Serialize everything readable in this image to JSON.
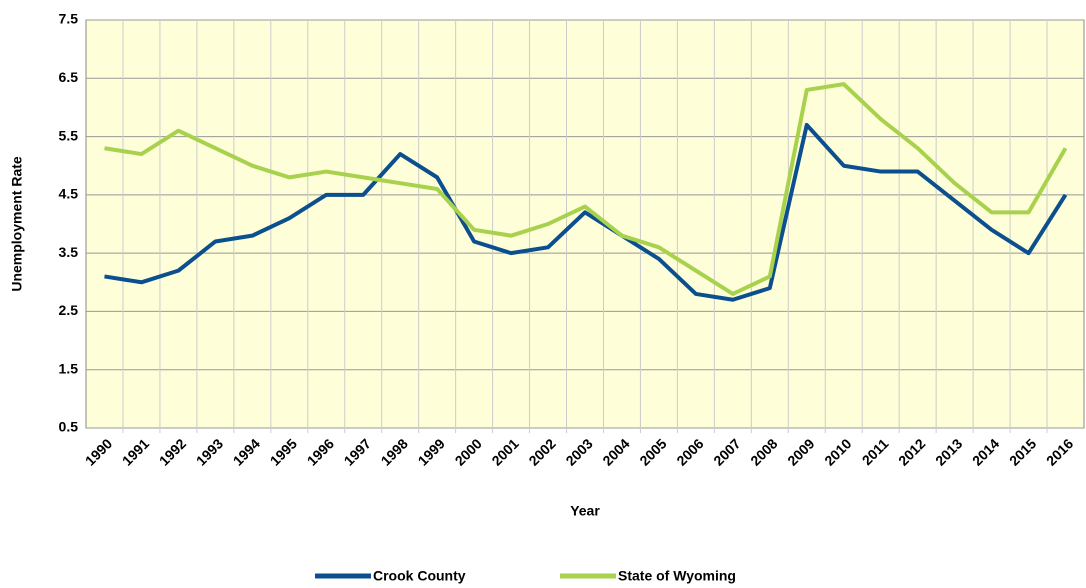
{
  "chart_data": {
    "type": "line",
    "x_label": "Year",
    "y_label": "Unemployment Rate",
    "categories": [
      "1990",
      "1991",
      "1992",
      "1993",
      "1994",
      "1995",
      "1996",
      "1997",
      "1998",
      "1999",
      "2000",
      "2001",
      "2002",
      "2003",
      "2004",
      "2005",
      "2006",
      "2007",
      "2008",
      "2009",
      "2010",
      "2011",
      "2012",
      "2013",
      "2014",
      "2015",
      "2016"
    ],
    "series": [
      {
        "name": "Crook County",
        "color": "#0b4f8f",
        "values": [
          3.1,
          3.0,
          3.2,
          3.7,
          3.8,
          4.1,
          4.5,
          4.5,
          5.2,
          4.8,
          3.7,
          3.5,
          3.6,
          4.2,
          3.8,
          3.4,
          2.8,
          2.7,
          2.9,
          5.7,
          5.0,
          4.9,
          4.9,
          4.4,
          3.9,
          3.5,
          4.5
        ]
      },
      {
        "name": "State of Wyoming",
        "color": "#a8d24e",
        "values": [
          5.3,
          5.2,
          5.6,
          5.3,
          5.0,
          4.8,
          4.9,
          4.8,
          4.7,
          4.6,
          3.9,
          3.8,
          4.0,
          4.3,
          3.8,
          3.6,
          3.2,
          2.8,
          3.1,
          6.3,
          6.4,
          5.8,
          5.3,
          4.7,
          4.2,
          4.2,
          5.3
        ]
      }
    ],
    "ylim": [
      0.5,
      7.5
    ],
    "yticks": [
      0.5,
      1.5,
      2.5,
      3.5,
      4.5,
      5.5,
      6.5,
      7.5
    ],
    "grid": true,
    "legend": "bottom"
  }
}
